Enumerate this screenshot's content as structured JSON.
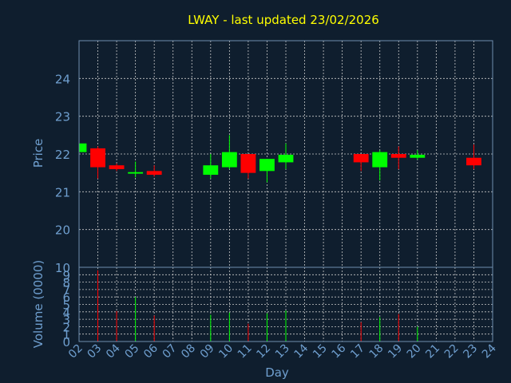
{
  "chart_data": {
    "type": "candlestick",
    "title": "LWAY - last updated 23/02/2026",
    "price_axis": {
      "ylabel": "Price",
      "ylim": [
        19,
        25
      ],
      "ticks": [
        20,
        21,
        22,
        23,
        24
      ]
    },
    "volume_axis": {
      "ylabel": "Volume (0000)",
      "ylim": [
        0,
        10
      ],
      "ticks": [
        0,
        1,
        2,
        3,
        4,
        5,
        6,
        7,
        8,
        9,
        10
      ]
    },
    "x_axis": {
      "xlabel": "Day",
      "ticks": [
        "02",
        "03",
        "04",
        "05",
        "06",
        "07",
        "08",
        "09",
        "10",
        "11",
        "12",
        "13",
        "14",
        "15",
        "16",
        "17",
        "18",
        "19",
        "20",
        "21",
        "22",
        "23",
        "24"
      ]
    },
    "grid": true,
    "candles": [
      {
        "day": 2,
        "open": 22.05,
        "close": 22.28,
        "high": 22.28,
        "low": 22.05,
        "volume": 0
      },
      {
        "day": 3,
        "open": 22.15,
        "close": 21.65,
        "high": 22.2,
        "low": 21.35,
        "volume": 9.6
      },
      {
        "day": 4,
        "open": 21.7,
        "close": 21.6,
        "high": 21.75,
        "low": 21.55,
        "volume": 4.1
      },
      {
        "day": 5,
        "open": 21.48,
        "close": 21.52,
        "high": 21.8,
        "low": 21.38,
        "volume": 6.0
      },
      {
        "day": 6,
        "open": 21.55,
        "close": 21.45,
        "high": 21.7,
        "low": 21.4,
        "volume": 3.5
      },
      {
        "day": 9,
        "open": 21.45,
        "close": 21.7,
        "high": 22.0,
        "low": 21.35,
        "volume": 3.6
      },
      {
        "day": 10,
        "open": 21.65,
        "close": 22.05,
        "high": 22.5,
        "low": 21.6,
        "volume": 3.9
      },
      {
        "day": 11,
        "open": 22.0,
        "close": 21.5,
        "high": 22.0,
        "low": 21.35,
        "volume": 2.4
      },
      {
        "day": 12,
        "open": 21.55,
        "close": 21.87,
        "high": 21.87,
        "low": 21.25,
        "volume": 3.8
      },
      {
        "day": 13,
        "open": 21.78,
        "close": 21.98,
        "high": 22.28,
        "low": 21.6,
        "volume": 4.2
      },
      {
        "day": 17,
        "open": 22.0,
        "close": 21.78,
        "high": 22.0,
        "low": 21.55,
        "volume": 2.6
      },
      {
        "day": 18,
        "open": 21.65,
        "close": 22.05,
        "high": 22.1,
        "low": 21.3,
        "volume": 3.3
      },
      {
        "day": 19,
        "open": 22.0,
        "close": 21.9,
        "high": 22.2,
        "low": 21.6,
        "volume": 3.7
      },
      {
        "day": 20,
        "open": 21.9,
        "close": 21.98,
        "high": 22.1,
        "low": 21.85,
        "volume": 2.0
      },
      {
        "day": 23,
        "open": 21.9,
        "close": 21.7,
        "high": 22.25,
        "low": 21.6,
        "volume": 0
      }
    ],
    "colors": {
      "background": "#0f1e2e",
      "text": "#6f9fcf",
      "title": "#ffff00",
      "frame": "#6f8faf",
      "grid": "#c8c8c8",
      "up": "#00ff00",
      "down": "#ff0000"
    }
  }
}
